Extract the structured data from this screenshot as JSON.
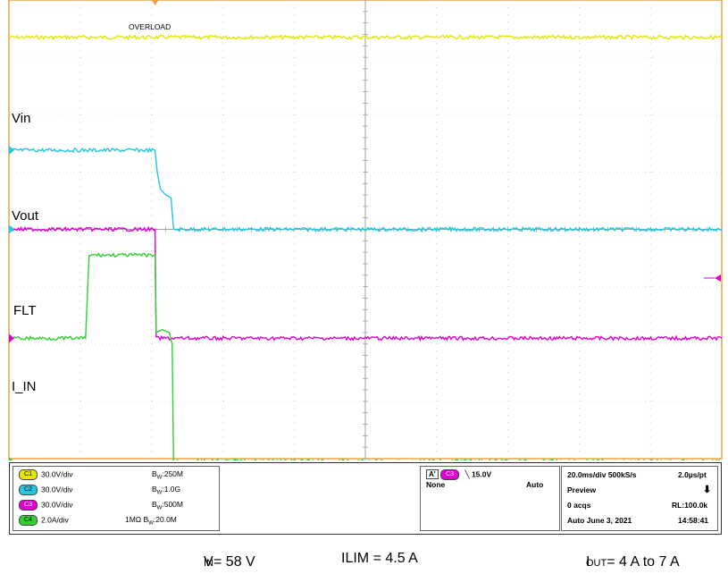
{
  "chart_data": {
    "type": "line",
    "title": "",
    "xlabel": "",
    "ylabel": "",
    "x_unit": "ms",
    "xlim": [
      0,
      200
    ],
    "ylim_div": [
      -4,
      4
    ],
    "grid": true,
    "trigger_note": "OVERLOAD",
    "series": [
      {
        "name": "",
        "color": "#e6e600",
        "points": [
          [
            0,
            3.35
          ],
          [
            200,
            3.35
          ]
        ]
      },
      {
        "name": "Vin",
        "color": "#1fc8e0",
        "points": [
          [
            0,
            1.38
          ],
          [
            41,
            1.38
          ],
          [
            41.6,
            1.0
          ],
          [
            42.5,
            0.7
          ],
          [
            44,
            0.6
          ],
          [
            45.5,
            0.55
          ],
          [
            45.8,
            0.3
          ],
          [
            46.2,
            0.0
          ],
          [
            200,
            0.0
          ]
        ]
      },
      {
        "name": "Vout",
        "color": "#e000d0",
        "points": [
          [
            0,
            0.0
          ],
          [
            41,
            0.0
          ],
          [
            41.3,
            -1.9
          ],
          [
            200,
            -1.9
          ]
        ]
      },
      {
        "name": "FLT",
        "color": "#30d030",
        "points": [
          [
            0,
            -1.9
          ],
          [
            21.5,
            -1.9
          ],
          [
            22.5,
            -0.45
          ],
          [
            41,
            -0.45
          ],
          [
            41.3,
            -1.8
          ],
          [
            43,
            -1.75
          ],
          [
            45,
            -1.8
          ],
          [
            45.8,
            -2.0
          ],
          [
            46.2,
            -4.05
          ],
          [
            200,
            -4.05
          ]
        ]
      }
    ],
    "labels": [
      "Vin",
      "Vout",
      "FLT",
      "I_IN"
    ]
  },
  "info": {
    "channels": [
      {
        "id": "C1",
        "color": "#e6e600",
        "scale": "30.0V/div",
        "bw": "250M",
        "extra": ""
      },
      {
        "id": "C2",
        "color": "#1fc8e0",
        "scale": "30.0V/div",
        "bw": "1.0G",
        "extra": ""
      },
      {
        "id": "C3",
        "color": "#e000d0",
        "scale": "30.0V/div",
        "bw": "500M",
        "extra": ""
      },
      {
        "id": "C4",
        "color": "#30d030",
        "scale": "2.0A/div",
        "bw": "20.0M",
        "extra": "1MΩ"
      }
    ],
    "bw_prefix": "B",
    "bw_sub": "W",
    "trigger": {
      "mode_letter": "A'",
      "channel": "C3",
      "level": "15.0V",
      "source": "None",
      "auto": "Auto"
    },
    "timebase": {
      "line1a": "20.0ms/div 500kS/s",
      "line1b": "2.0µs/pt",
      "line2": "Preview",
      "line3a": "0 acqs",
      "line3b": "RL:100.0k",
      "line4a": "Auto   June 3, 2021",
      "line4b": "14:58:41"
    }
  },
  "caption": {
    "vin_main": "V",
    "vin_sub": "IN",
    "vin_rest": " = 58 V",
    "ilim": "ILIM = 4.5 A",
    "iout_main": "I",
    "iout_sub": "OUT",
    "iout_rest": " = 4 A to 7 A"
  }
}
